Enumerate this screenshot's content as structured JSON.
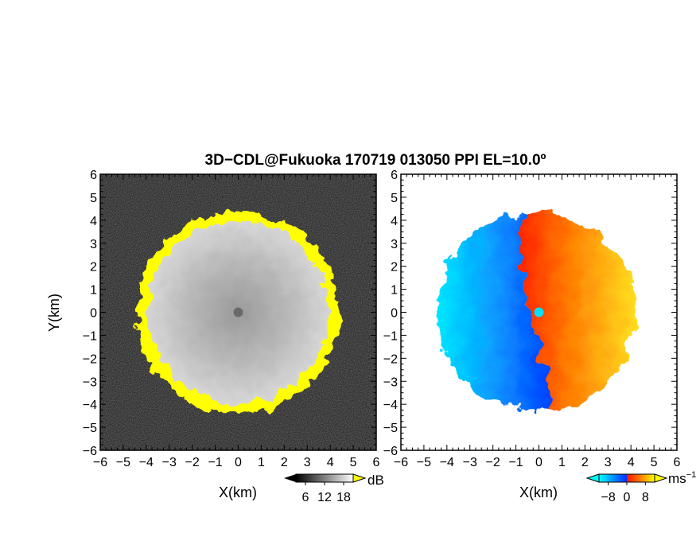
{
  "figure": {
    "title": "3D−CDL@Fukuoka 170719 013050 PPI EL=10.0º"
  },
  "chart_data": [
    {
      "type": "heatmap",
      "panel": "left",
      "description_of_values": "radar SNR / intensity PPI image",
      "xlabel": "X(km)",
      "ylabel": "Y(km)",
      "xlim": [
        -6,
        6
      ],
      "ylim": [
        -6,
        6
      ],
      "xticks": [
        -6,
        -5,
        -4,
        -3,
        -2,
        -1,
        0,
        1,
        2,
        3,
        4,
        5,
        6
      ],
      "yticks": [
        -6,
        -5,
        -4,
        -3,
        -2,
        -1,
        0,
        1,
        2,
        3,
        4,
        5,
        6
      ],
      "echo_radius_km": 4.1,
      "colorbar": {
        "label": "dB",
        "ticks": [
          6,
          12,
          18
        ],
        "range": [
          3,
          21
        ],
        "colors": [
          "#000000",
          "#ffffff"
        ],
        "over_color": "#ffff00"
      },
      "background_color": "#2a2a2a",
      "ring_color": "#ffff00"
    },
    {
      "type": "heatmap",
      "panel": "right",
      "description_of_values": "Doppler radial velocity PPI image",
      "xlabel": "X(km)",
      "ylabel": "",
      "xlim": [
        -6,
        6
      ],
      "ylim": [
        -6,
        6
      ],
      "xticks": [
        -6,
        -5,
        -4,
        -3,
        -2,
        -1,
        0,
        1,
        2,
        3,
        4,
        5,
        6
      ],
      "yticks": [
        -6,
        -5,
        -4,
        -3,
        -2,
        -1,
        0,
        1,
        2,
        3,
        4,
        5,
        6
      ],
      "echo_radius_km": 4.3,
      "colorbar": {
        "label": "ms",
        "label_exponent": "−1",
        "ticks": [
          -8,
          0,
          8
        ],
        "range": [
          -12,
          12
        ],
        "colors": [
          "#00ffff",
          "#0050ff",
          "#ff2000",
          "#ffff00"
        ]
      },
      "radar_marker_color": "#00e0ff"
    }
  ]
}
